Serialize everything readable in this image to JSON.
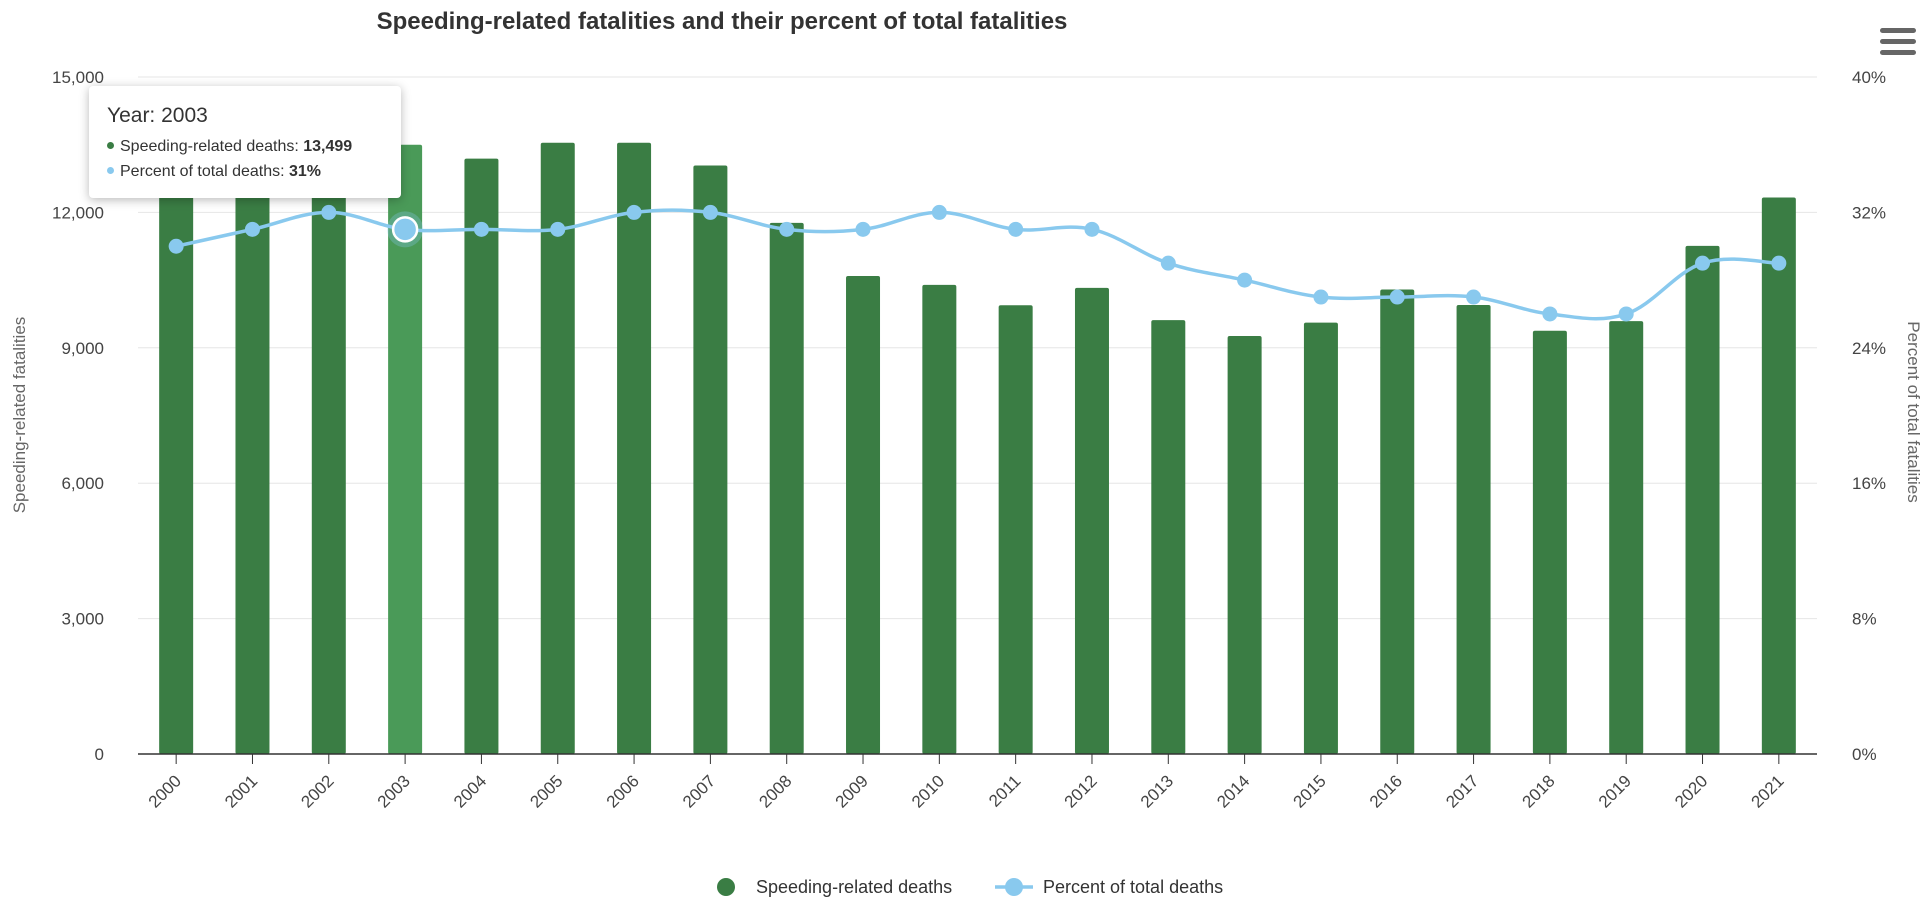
{
  "chart_data": {
    "type": "bar",
    "title": "Speeding-related fatalities and their percent of total fatalities",
    "categories": [
      "2000",
      "2001",
      "2002",
      "2003",
      "2004",
      "2005",
      "2006",
      "2007",
      "2008",
      "2009",
      "2010",
      "2011",
      "2012",
      "2013",
      "2014",
      "2015",
      "2016",
      "2017",
      "2018",
      "2019",
      "2020",
      "2021"
    ],
    "series": [
      {
        "name": "Speeding-related deaths",
        "type": "bar",
        "axis": "left",
        "color": "#3a7d44",
        "values": [
          12350,
          12850,
          13713,
          13499,
          13192,
          13543,
          13543,
          13040,
          11767,
          10591,
          10395,
          9944,
          10329,
          9613,
          9262,
          9557,
          10291,
          9947,
          9378,
          9592,
          11258,
          12330
        ]
      },
      {
        "name": "Percent of total deaths",
        "type": "line",
        "axis": "right",
        "color": "#89c9ee",
        "values": [
          30,
          31,
          32,
          31,
          31,
          31,
          32,
          32,
          31,
          31,
          32,
          31,
          31,
          29,
          28,
          27,
          27,
          27,
          26,
          26,
          29,
          29
        ]
      }
    ],
    "ylabel": "Speeding-related fatalities",
    "ylim": [
      0,
      15000
    ],
    "yticks": [
      "0",
      "3,000",
      "6,000",
      "9,000",
      "12,000",
      "15,000"
    ],
    "y2label": "Percent of total fatalities",
    "y2lim": [
      0,
      40
    ],
    "y2ticks": [
      "0%",
      "8%",
      "16%",
      "24%",
      "32%",
      "40%"
    ],
    "grid": true,
    "legend_position": "bottom-center",
    "highlighted_category_index": 3,
    "highlight_color": "#4a9a58"
  },
  "tooltip": {
    "header": "Year: 2003",
    "rows": [
      {
        "label": "Speeding-related deaths: ",
        "value": "13,499",
        "color": "#3a7d44"
      },
      {
        "label": "Percent of total deaths: ",
        "value": "31%",
        "color": "#89c9ee"
      }
    ]
  },
  "menu": {
    "icon": "hamburger-menu-icon"
  }
}
